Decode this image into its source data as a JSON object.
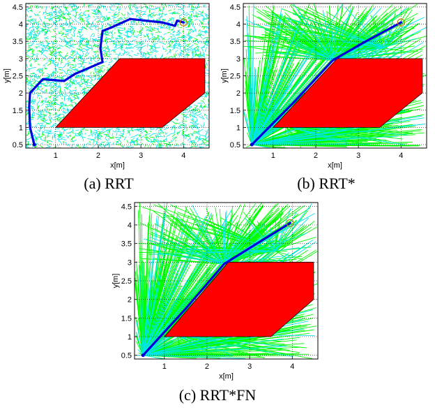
{
  "colors": {
    "tree": "#00ff00",
    "tree_alt": "#00e5e5",
    "path": "#0000dd",
    "obstacle": "#ff0000",
    "goal": "#b8860b",
    "grid": "#000000"
  },
  "chart_data": [
    {
      "type": "line",
      "caption": "(a) RRT",
      "xlabel": "x[m]",
      "ylabel": "y[m]",
      "xlim": [
        0.3,
        4.6
      ],
      "ylim": [
        0.4,
        4.6
      ],
      "xticks": [
        1,
        2,
        3,
        4
      ],
      "yticks": [
        0.5,
        1,
        1.5,
        2,
        2.5,
        3,
        3.5,
        4,
        4.5
      ],
      "grid": true,
      "tree_style": "random",
      "obstacle": [
        [
          1,
          1
        ],
        [
          3.5,
          1
        ],
        [
          4.5,
          2
        ],
        [
          4.5,
          3
        ],
        [
          2.5,
          3
        ],
        [
          1,
          1
        ]
      ],
      "start": [
        0.5,
        0.5
      ],
      "goal": [
        4,
        4.05
      ],
      "series": [
        {
          "values": [
            [
              0.5,
              0.5
            ],
            [
              0.4,
              1.0
            ],
            [
              0.38,
              1.6
            ],
            [
              0.4,
              2.0
            ],
            [
              0.7,
              2.4
            ],
            [
              1.2,
              2.35
            ],
            [
              1.45,
              2.55
            ],
            [
              2.1,
              2.9
            ],
            [
              2.05,
              3.3
            ],
            [
              2.1,
              3.8
            ],
            [
              2.3,
              3.9
            ],
            [
              2.75,
              4.15
            ],
            [
              3.5,
              4.05
            ],
            [
              3.8,
              3.95
            ],
            [
              3.85,
              4.1
            ],
            [
              4,
              4.05
            ]
          ]
        }
      ]
    },
    {
      "type": "line",
      "caption": "(b) RRT*",
      "xlabel": "x[m]",
      "ylabel": "y[m]",
      "xlim": [
        0.3,
        4.6
      ],
      "ylim": [
        0.4,
        4.6
      ],
      "xticks": [
        1,
        2,
        3,
        4
      ],
      "yticks": [
        0.5,
        1,
        1.5,
        2,
        2.5,
        3,
        3.5,
        4,
        4.5
      ],
      "grid": true,
      "tree_style": "star",
      "obstacle": [
        [
          1,
          1
        ],
        [
          3.5,
          1
        ],
        [
          4.5,
          2
        ],
        [
          4.5,
          3
        ],
        [
          2.5,
          3
        ],
        [
          1,
          1
        ]
      ],
      "start": [
        0.5,
        0.5
      ],
      "goal": [
        4,
        4.05
      ],
      "series": [
        {
          "values": [
            [
              0.5,
              0.5
            ],
            [
              1.5,
              1.75
            ],
            [
              2.4,
              2.95
            ],
            [
              3.1,
              3.45
            ],
            [
              4,
              4.05
            ]
          ]
        }
      ]
    },
    {
      "type": "line",
      "caption": "(c) RRT*FN",
      "xlabel": "x[m]",
      "ylabel": "y[m]",
      "xlim": [
        0.3,
        4.6
      ],
      "ylim": [
        0.4,
        4.6
      ],
      "xticks": [
        1,
        2,
        3,
        4
      ],
      "yticks": [
        0.5,
        1,
        1.5,
        2,
        2.5,
        3,
        3.5,
        4,
        4.5
      ],
      "grid": true,
      "tree_style": "star",
      "obstacle": [
        [
          1,
          1
        ],
        [
          3.5,
          1
        ],
        [
          4.5,
          2
        ],
        [
          4.5,
          3
        ],
        [
          2.5,
          3
        ],
        [
          1,
          1
        ]
      ],
      "start": [
        0.5,
        0.5
      ],
      "goal": [
        3.95,
        4.05
      ],
      "series": [
        {
          "values": [
            [
              0.5,
              0.5
            ],
            [
              1.5,
              1.75
            ],
            [
              2.4,
              2.95
            ],
            [
              3.1,
              3.45
            ],
            [
              3.95,
              4.05
            ]
          ]
        }
      ]
    }
  ]
}
